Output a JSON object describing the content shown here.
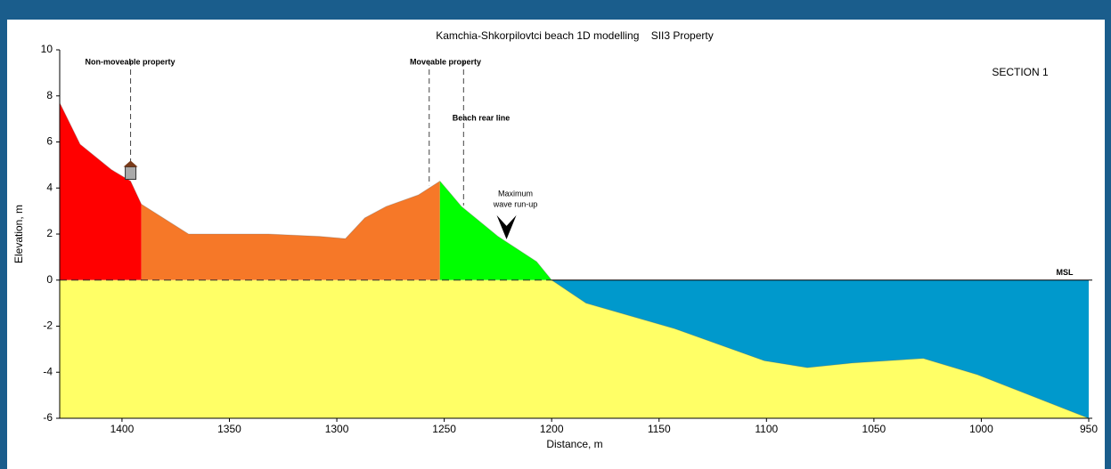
{
  "chart_data": {
    "type": "profile",
    "title": "Kamchia-Shkorpilovtci beach 1D modelling    SII3 Property",
    "x_label": "Distance, m",
    "y_label": "Elevation, m",
    "section_label": "SECTION 1",
    "sea_level_label": "MSL",
    "x": [
      1429,
      1419.5,
      1405,
      1396,
      1391,
      1369,
      1332,
      1308,
      1296,
      1287,
      1277,
      1262,
      1252,
      1242,
      1225,
      1207,
      1200,
      1184,
      1143,
      1101,
      1081,
      1060,
      1027,
      1002,
      950
    ],
    "series": [
      {
        "values": [
          7.7,
          5.9,
          4.8,
          4.3,
          3.3,
          2.0,
          2.0,
          1.9,
          1.8,
          2.7,
          3.2,
          3.7,
          4.3,
          3.2,
          1.9,
          0.8,
          0,
          -1.0,
          -2.1,
          -3.5,
          -3.8,
          -3.6,
          -3.4,
          -4.1,
          -6.0
        ]
      }
    ],
    "zones": [
      {
        "from": 1429,
        "to": 1391,
        "color": "#ff0000"
      },
      {
        "from": 1391,
        "to": 1252,
        "color": "#f67828"
      },
      {
        "from": 1252,
        "to": 1200,
        "color": "#00ff00"
      }
    ],
    "land_color": "#ffff66",
    "sea_color": "#0099cc",
    "markers": [
      {
        "label": "Non-moveable property",
        "x": 1396
      },
      {
        "label": "Moveable property",
        "x": 1257
      },
      {
        "label": "Beach rear line",
        "x": 1241
      }
    ],
    "runup": {
      "label": [
        "Maximum",
        "wave run-up"
      ],
      "x": 1221
    },
    "xlim": [
      1429,
      950
    ],
    "ylim": [
      -6,
      10
    ],
    "xticks": [
      1400,
      1350,
      1300,
      1250,
      1200,
      1150,
      1100,
      1050,
      1000,
      950
    ],
    "yticks": [
      -6,
      -4,
      -2,
      0,
      2,
      4,
      6,
      8,
      10
    ]
  }
}
